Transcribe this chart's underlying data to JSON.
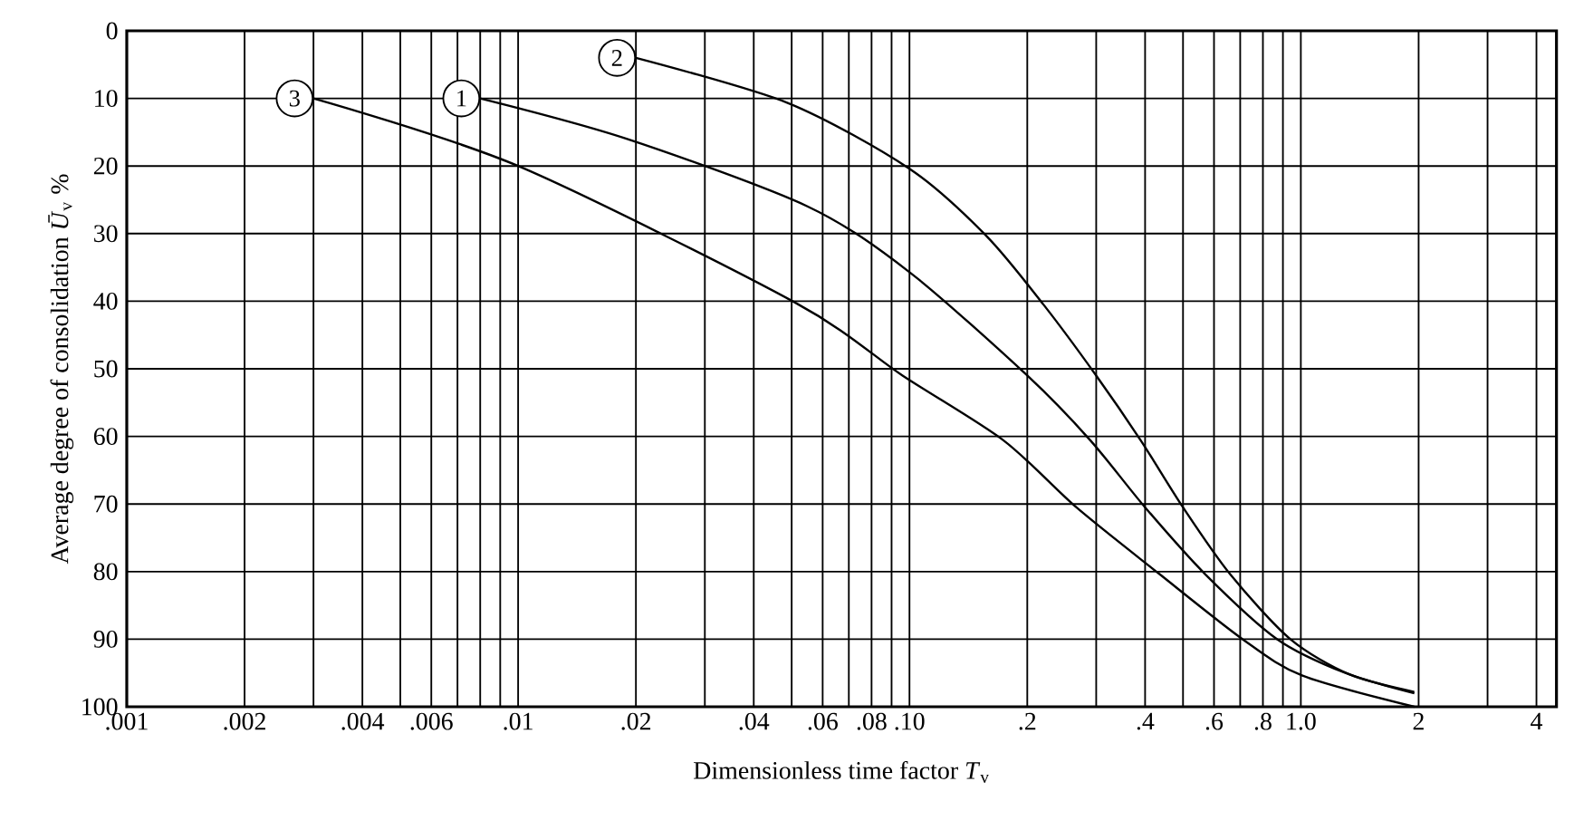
{
  "chart_data": {
    "type": "line",
    "xlabel": "Dimensionless time factor *T*$_{v}$",
    "ylabel": "Average degree of consolidation *Ū*$_{v}$ %",
    "log": "x",
    "grid": true,
    "marker": "none",
    "line_style": "solid",
    "xlim": [
      0.001,
      4.5
    ],
    "ylim": [
      100,
      0
    ],
    "xticks": [
      {
        "value": 0.001,
        "label": ".001"
      },
      {
        "value": 0.002,
        "label": ".002"
      },
      {
        "value": 0.003,
        "label": null
      },
      {
        "value": 0.004,
        "label": ".004"
      },
      {
        "value": 0.005,
        "label": null
      },
      {
        "value": 0.006,
        "label": ".006"
      },
      {
        "value": 0.007,
        "label": null
      },
      {
        "value": 0.008,
        "label": null
      },
      {
        "value": 0.009,
        "label": null
      },
      {
        "value": 0.01,
        "label": ".01"
      },
      {
        "value": 0.02,
        "label": ".02"
      },
      {
        "value": 0.03,
        "label": null
      },
      {
        "value": 0.04,
        "label": ".04"
      },
      {
        "value": 0.05,
        "label": null
      },
      {
        "value": 0.06,
        "label": ".06"
      },
      {
        "value": 0.07,
        "label": null
      },
      {
        "value": 0.08,
        "label": ".08"
      },
      {
        "value": 0.09,
        "label": null
      },
      {
        "value": 0.1,
        "label": ".10"
      },
      {
        "value": 0.2,
        "label": ".2"
      },
      {
        "value": 0.3,
        "label": null
      },
      {
        "value": 0.4,
        "label": ".4"
      },
      {
        "value": 0.5,
        "label": null
      },
      {
        "value": 0.6,
        "label": ".6"
      },
      {
        "value": 0.7,
        "label": null
      },
      {
        "value": 0.8,
        "label": ".8"
      },
      {
        "value": 0.9,
        "label": null
      },
      {
        "value": 1,
        "label": "1.0"
      },
      2,
      {
        "value": 3,
        "label": null
      },
      4
    ],
    "yticks": [
      0,
      10,
      20,
      30,
      40,
      50,
      60,
      70,
      80,
      90,
      100
    ],
    "series": [
      {
        "name": "1",
        "color": "#000000",
        "x": [
          0.008,
          0.019,
          0.055,
          0.1,
          0.2,
          0.29,
          0.4,
          0.57,
          0.87,
          1.3,
          1.95
        ],
        "values": [
          10,
          16,
          26,
          35.7,
          51,
          60.6,
          70.5,
          80.4,
          90,
          95,
          98
        ]
      },
      {
        "name": "2",
        "color": "#000000",
        "x": [
          0.02,
          0.049,
          0.1,
          0.157,
          0.22,
          0.3,
          0.39,
          0.5,
          0.66,
          0.94,
          1.33,
          1.95
        ],
        "values": [
          4,
          10.7,
          20.4,
          30.3,
          40.5,
          51,
          60.6,
          70.5,
          80.4,
          90,
          95.2,
          97.8
        ]
      },
      {
        "name": "3",
        "color": "#000000",
        "x": [
          0.003,
          0.01,
          0.051,
          0.096,
          0.174,
          0.267,
          0.436,
          0.71,
          1.01,
          1.95
        ],
        "values": [
          10,
          20,
          40.2,
          51,
          60.6,
          70.5,
          80.4,
          90,
          95.4,
          100
        ]
      }
    ]
  }
}
